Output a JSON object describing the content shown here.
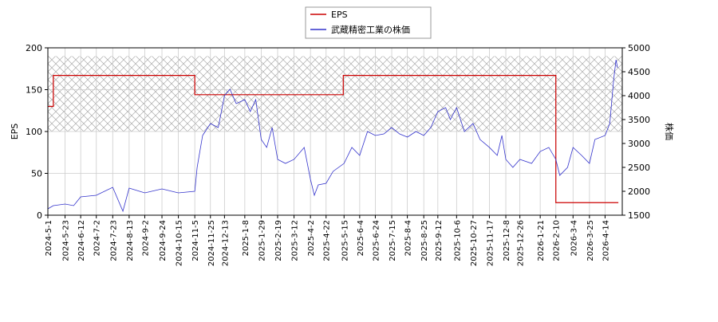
{
  "chart_data": {
    "type": "line",
    "x_axis_type": "date",
    "xlim": [
      "2024-5-1",
      "2026-5-6"
    ],
    "xticks": [
      "2024-5-1",
      "2024-5-23",
      "2024-6-12",
      "2024-7-2",
      "2024-7-23",
      "2024-8-13",
      "2024-9-2",
      "2024-9-24",
      "2024-10-15",
      "2024-11-5",
      "2024-11-25",
      "2024-12-13",
      "2025-1-8",
      "2025-1-29",
      "2025-2-19",
      "2025-3-12",
      "2025-4-2",
      "2025-4-22",
      "2025-5-15",
      "2025-6-4",
      "2025-6-24",
      "2025-7-15",
      "2025-8-4",
      "2025-8-25",
      "2025-9-12",
      "2025-10-6",
      "2025-10-27",
      "2025-11-17",
      "2025-12-8",
      "2025-12-26",
      "2026-1-21",
      "2026-2-10",
      "2026-3-4",
      "2026-3-25",
      "2026-4-14"
    ],
    "ylabel": "EPS",
    "ylim": [
      0,
      200
    ],
    "yticks": [
      0,
      50,
      100,
      150,
      200
    ],
    "y2label": "株価",
    "y2lim": [
      1500,
      5000
    ],
    "y2ticks": [
      1500,
      2000,
      2500,
      3000,
      3500,
      4000,
      4500,
      5000
    ],
    "grid": true,
    "hatched_band": [
      100,
      190
    ],
    "legend": "top",
    "series": [
      {
        "name": "EPS",
        "color": "#cc0000",
        "step": "post",
        "x": [
          "2024-5-1",
          "2024-5-8",
          "2024-11-5",
          "2025-5-14",
          "2026-2-10",
          "2026-5-1"
        ],
        "values": [
          130,
          167,
          144,
          167,
          15,
          15
        ]
      },
      {
        "name": "武蔵精密工業の株価",
        "color": "#3333cc",
        "axis": "y2",
        "x": [
          "2024-5-1",
          "2024-5-8",
          "2024-5-23",
          "2024-6-3",
          "2024-6-12",
          "2024-7-2",
          "2024-7-23",
          "2024-8-5",
          "2024-8-13",
          "2024-9-2",
          "2024-9-24",
          "2024-10-15",
          "2024-11-5",
          "2024-11-8",
          "2024-11-15",
          "2024-11-25",
          "2024-12-5",
          "2024-12-13",
          "2024-12-20",
          "2024-12-28",
          "2025-1-8",
          "2025-1-15",
          "2025-1-22",
          "2025-1-29",
          "2025-2-5",
          "2025-2-12",
          "2025-2-19",
          "2025-3-1",
          "2025-3-12",
          "2025-3-25",
          "2025-4-2",
          "2025-4-7",
          "2025-4-12",
          "2025-4-22",
          "2025-5-1",
          "2025-5-15",
          "2025-5-25",
          "2025-6-4",
          "2025-6-14",
          "2025-6-24",
          "2025-7-5",
          "2025-7-15",
          "2025-7-25",
          "2025-8-4",
          "2025-8-15",
          "2025-8-25",
          "2025-9-3",
          "2025-9-12",
          "2025-9-22",
          "2025-9-28",
          "2025-10-6",
          "2025-10-16",
          "2025-10-27",
          "2025-11-5",
          "2025-11-17",
          "2025-11-27",
          "2025-12-3",
          "2025-12-8",
          "2025-12-17",
          "2025-12-26",
          "2026-1-10",
          "2026-1-21",
          "2026-2-1",
          "2026-2-10",
          "2026-2-15",
          "2026-2-25",
          "2026-3-4",
          "2026-3-15",
          "2026-3-25",
          "2026-4-1",
          "2026-4-14",
          "2026-4-20",
          "2026-4-25",
          "2026-4-28",
          "2026-4-30"
        ],
        "values": [
          1633,
          1700,
          1733,
          1700,
          1883,
          1917,
          2083,
          1583,
          2067,
          1967,
          2050,
          1967,
          2000,
          2500,
          3167,
          3417,
          3333,
          4000,
          4133,
          3833,
          3917,
          3667,
          3917,
          3083,
          2917,
          3333,
          2667,
          2583,
          2667,
          2917,
          2250,
          1917,
          2133,
          2167,
          2417,
          2583,
          2917,
          2750,
          3250,
          3167,
          3200,
          3333,
          3200,
          3133,
          3250,
          3167,
          3333,
          3667,
          3750,
          3500,
          3750,
          3250,
          3417,
          3083,
          2917,
          2750,
          3167,
          2667,
          2500,
          2667,
          2583,
          2833,
          2917,
          2667,
          2333,
          2500,
          2917,
          2750,
          2583,
          3083,
          3167,
          3417,
          4333,
          4750,
          4583
        ]
      }
    ]
  }
}
